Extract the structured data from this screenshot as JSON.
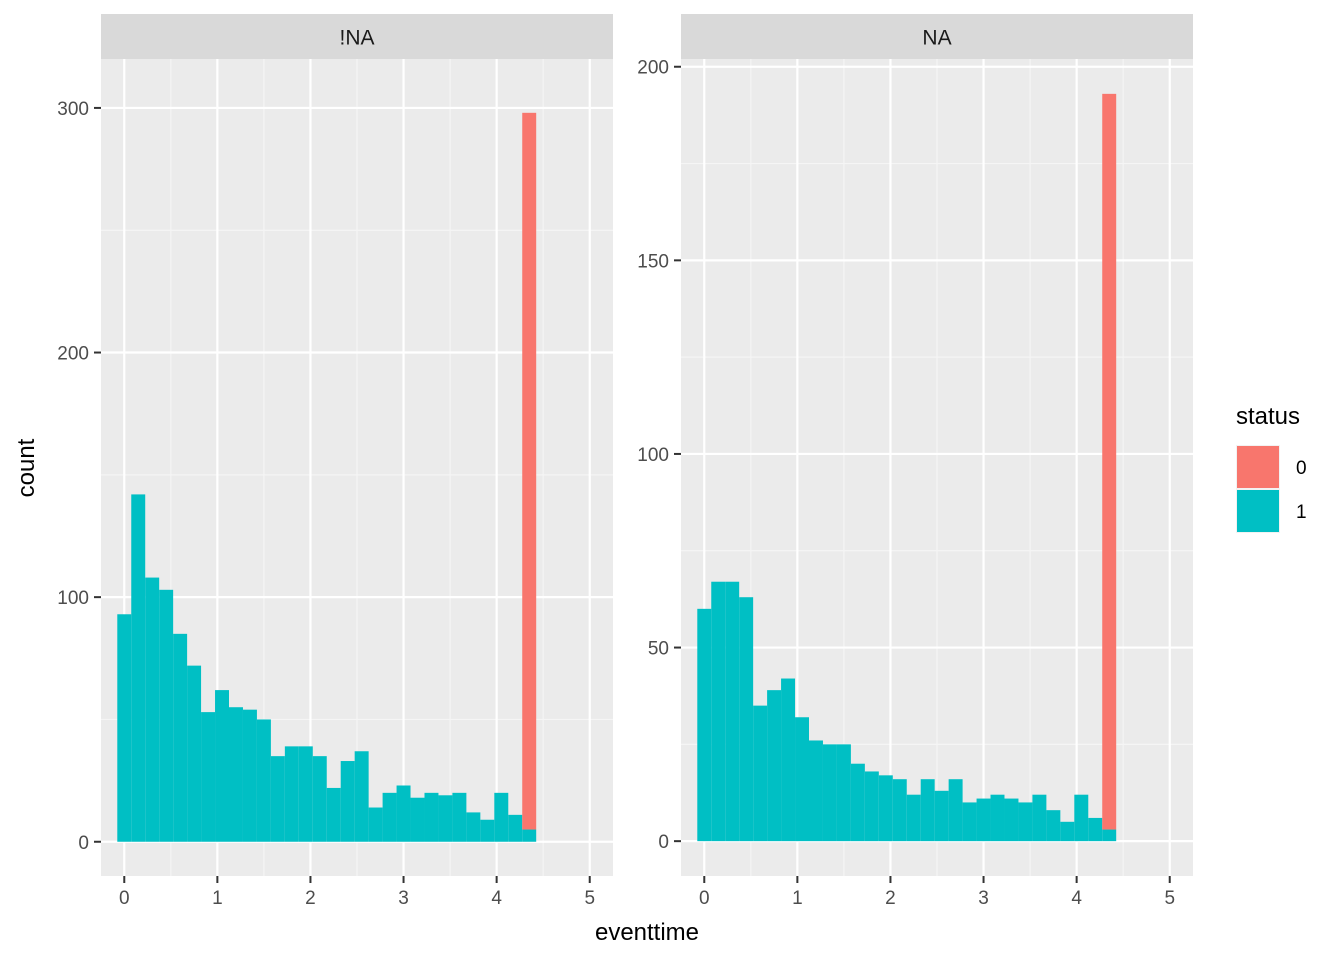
{
  "chart_data": {
    "type": "bar",
    "xlabel": "eventtime",
    "ylabel": "count",
    "legend": {
      "title": "status",
      "placement": "right",
      "entries": [
        {
          "label": "0",
          "color": "#F8766D"
        },
        {
          "label": "1",
          "color": "#00BFC4"
        }
      ]
    },
    "grid": true,
    "x_ticks": [
      "0",
      "1",
      "2",
      "3",
      "4",
      "5"
    ],
    "bin_width": 0.15,
    "panels": [
      {
        "facet": "!NA",
        "xlim": [
          -0.25,
          5.25
        ],
        "ylim": [
          -14,
          320
        ],
        "y_ticks": [
          "0",
          "100",
          "200",
          "300"
        ],
        "series": [
          {
            "name": "1",
            "bins": [
              {
                "x0": -0.075,
                "x1": 0.075,
                "y0": 0,
                "y1": 93
              },
              {
                "x0": 0.075,
                "x1": 0.225,
                "y0": 0,
                "y1": 142
              },
              {
                "x0": 0.225,
                "x1": 0.375,
                "y0": 0,
                "y1": 108
              },
              {
                "x0": 0.375,
                "x1": 0.525,
                "y0": 0,
                "y1": 103
              },
              {
                "x0": 0.525,
                "x1": 0.675,
                "y0": 0,
                "y1": 85
              },
              {
                "x0": 0.675,
                "x1": 0.825,
                "y0": 0,
                "y1": 72
              },
              {
                "x0": 0.825,
                "x1": 0.975,
                "y0": 0,
                "y1": 53
              },
              {
                "x0": 0.975,
                "x1": 1.125,
                "y0": 0,
                "y1": 62
              },
              {
                "x0": 1.125,
                "x1": 1.275,
                "y0": 0,
                "y1": 55
              },
              {
                "x0": 1.275,
                "x1": 1.425,
                "y0": 0,
                "y1": 54
              },
              {
                "x0": 1.425,
                "x1": 1.575,
                "y0": 0,
                "y1": 50
              },
              {
                "x0": 1.575,
                "x1": 1.725,
                "y0": 0,
                "y1": 35
              },
              {
                "x0": 1.725,
                "x1": 1.875,
                "y0": 0,
                "y1": 39
              },
              {
                "x0": 1.875,
                "x1": 2.025,
                "y0": 0,
                "y1": 39
              },
              {
                "x0": 2.025,
                "x1": 2.175,
                "y0": 0,
                "y1": 35
              },
              {
                "x0": 2.175,
                "x1": 2.325,
                "y0": 0,
                "y1": 22
              },
              {
                "x0": 2.325,
                "x1": 2.475,
                "y0": 0,
                "y1": 33
              },
              {
                "x0": 2.475,
                "x1": 2.625,
                "y0": 0,
                "y1": 37
              },
              {
                "x0": 2.625,
                "x1": 2.775,
                "y0": 0,
                "y1": 14
              },
              {
                "x0": 2.775,
                "x1": 2.925,
                "y0": 0,
                "y1": 20
              },
              {
                "x0": 2.925,
                "x1": 3.075,
                "y0": 0,
                "y1": 23
              },
              {
                "x0": 3.075,
                "x1": 3.225,
                "y0": 0,
                "y1": 18
              },
              {
                "x0": 3.225,
                "x1": 3.375,
                "y0": 0,
                "y1": 20
              },
              {
                "x0": 3.375,
                "x1": 3.525,
                "y0": 0,
                "y1": 19
              },
              {
                "x0": 3.525,
                "x1": 3.675,
                "y0": 0,
                "y1": 20
              },
              {
                "x0": 3.675,
                "x1": 3.825,
                "y0": 0,
                "y1": 12
              },
              {
                "x0": 3.825,
                "x1": 3.975,
                "y0": 0,
                "y1": 9
              },
              {
                "x0": 3.975,
                "x1": 4.125,
                "y0": 0,
                "y1": 20
              },
              {
                "x0": 4.125,
                "x1": 4.275,
                "y0": 0,
                "y1": 11
              },
              {
                "x0": 4.275,
                "x1": 4.425,
                "y0": 0,
                "y1": 5
              }
            ]
          },
          {
            "name": "0",
            "bins": [
              {
                "x0": 4.275,
                "x1": 4.425,
                "y0": 5,
                "y1": 298
              }
            ]
          }
        ]
      },
      {
        "facet": "NA",
        "xlim": [
          -0.25,
          5.25
        ],
        "ylim": [
          -9,
          202
        ],
        "y_ticks": [
          "0",
          "50",
          "100",
          "150",
          "200"
        ],
        "series": [
          {
            "name": "1",
            "bins": [
              {
                "x0": -0.075,
                "x1": 0.075,
                "y0": 0,
                "y1": 60
              },
              {
                "x0": 0.075,
                "x1": 0.225,
                "y0": 0,
                "y1": 67
              },
              {
                "x0": 0.225,
                "x1": 0.375,
                "y0": 0,
                "y1": 67
              },
              {
                "x0": 0.375,
                "x1": 0.525,
                "y0": 0,
                "y1": 63
              },
              {
                "x0": 0.525,
                "x1": 0.675,
                "y0": 0,
                "y1": 35
              },
              {
                "x0": 0.675,
                "x1": 0.825,
                "y0": 0,
                "y1": 39
              },
              {
                "x0": 0.825,
                "x1": 0.975,
                "y0": 0,
                "y1": 42
              },
              {
                "x0": 0.975,
                "x1": 1.125,
                "y0": 0,
                "y1": 32
              },
              {
                "x0": 1.125,
                "x1": 1.275,
                "y0": 0,
                "y1": 26
              },
              {
                "x0": 1.275,
                "x1": 1.425,
                "y0": 0,
                "y1": 25
              },
              {
                "x0": 1.425,
                "x1": 1.575,
                "y0": 0,
                "y1": 25
              },
              {
                "x0": 1.575,
                "x1": 1.725,
                "y0": 0,
                "y1": 20
              },
              {
                "x0": 1.725,
                "x1": 1.875,
                "y0": 0,
                "y1": 18
              },
              {
                "x0": 1.875,
                "x1": 2.025,
                "y0": 0,
                "y1": 17
              },
              {
                "x0": 2.025,
                "x1": 2.175,
                "y0": 0,
                "y1": 16
              },
              {
                "x0": 2.175,
                "x1": 2.325,
                "y0": 0,
                "y1": 12
              },
              {
                "x0": 2.325,
                "x1": 2.475,
                "y0": 0,
                "y1": 16
              },
              {
                "x0": 2.475,
                "x1": 2.625,
                "y0": 0,
                "y1": 13
              },
              {
                "x0": 2.625,
                "x1": 2.775,
                "y0": 0,
                "y1": 16
              },
              {
                "x0": 2.775,
                "x1": 2.925,
                "y0": 0,
                "y1": 10
              },
              {
                "x0": 2.925,
                "x1": 3.075,
                "y0": 0,
                "y1": 11
              },
              {
                "x0": 3.075,
                "x1": 3.225,
                "y0": 0,
                "y1": 12
              },
              {
                "x0": 3.225,
                "x1": 3.375,
                "y0": 0,
                "y1": 11
              },
              {
                "x0": 3.375,
                "x1": 3.525,
                "y0": 0,
                "y1": 10
              },
              {
                "x0": 3.525,
                "x1": 3.675,
                "y0": 0,
                "y1": 12
              },
              {
                "x0": 3.675,
                "x1": 3.825,
                "y0": 0,
                "y1": 8
              },
              {
                "x0": 3.825,
                "x1": 3.975,
                "y0": 0,
                "y1": 5
              },
              {
                "x0": 3.975,
                "x1": 4.125,
                "y0": 0,
                "y1": 12
              },
              {
                "x0": 4.125,
                "x1": 4.275,
                "y0": 0,
                "y1": 6
              },
              {
                "x0": 4.275,
                "x1": 4.425,
                "y0": 0,
                "y1": 3
              }
            ]
          },
          {
            "name": "0",
            "bins": [
              {
                "x0": 4.275,
                "x1": 4.425,
                "y0": 3,
                "y1": 193
              }
            ]
          }
        ]
      }
    ]
  }
}
